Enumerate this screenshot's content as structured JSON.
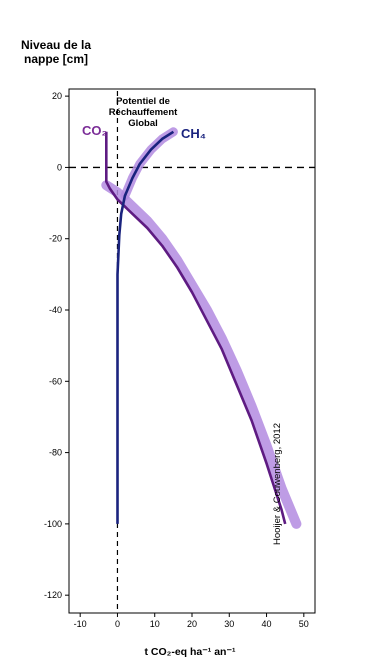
{
  "chart_data": {
    "type": "line",
    "y_title_line1": "Niveau de la",
    "y_title_line2": "nappe [cm]",
    "x_title": "t CO₂-eq ha⁻¹ an⁻¹",
    "gwp_label_line1": "Potentiel de",
    "gwp_label_line2": "Réchauffement",
    "gwp_label_line3": "Global",
    "credit": "Hooijer & Couwenberg, 2012",
    "xlim": [
      -13,
      53
    ],
    "ylim": [
      -125,
      22
    ],
    "x_ticks": [
      -10,
      0,
      10,
      20,
      30,
      40,
      50
    ],
    "y_ticks": [
      20,
      0,
      -20,
      -40,
      -60,
      -80,
      -100,
      -120
    ],
    "reference_line": {
      "y": 0,
      "style": "dashed"
    },
    "zero_line": {
      "x": 0,
      "style": "dashed"
    },
    "series": [
      {
        "name": "CO₂",
        "color": "#5e1b82",
        "band_color": "#b38be0",
        "x": [
          -3,
          -3,
          -2,
          0,
          4,
          8,
          12,
          16,
          20,
          24,
          28,
          32,
          36,
          40,
          44,
          45
        ],
        "y": [
          10,
          -4,
          -6,
          -9,
          -13,
          -17,
          -22,
          -28,
          -35,
          -43,
          -51,
          -61,
          -71,
          -83,
          -96,
          -100
        ],
        "band_upper_x": [
          -3,
          0,
          4,
          8,
          12,
          16,
          20,
          24,
          28,
          32,
          36,
          40,
          44,
          48
        ],
        "band_upper_y": [
          -5,
          -7,
          -11,
          -15,
          -20,
          -26,
          -33,
          -40,
          -48,
          -57,
          -67,
          -78,
          -90,
          -100
        ]
      },
      {
        "name": "CH₄",
        "color": "#1a237e",
        "band_color": "#b38be0",
        "x": [
          15,
          12,
          9,
          6,
          4,
          2,
          1,
          0.5,
          0,
          0,
          0
        ],
        "y": [
          10,
          8,
          5,
          1,
          -3,
          -8,
          -13,
          -19,
          -30,
          -60,
          -100
        ]
      }
    ]
  }
}
